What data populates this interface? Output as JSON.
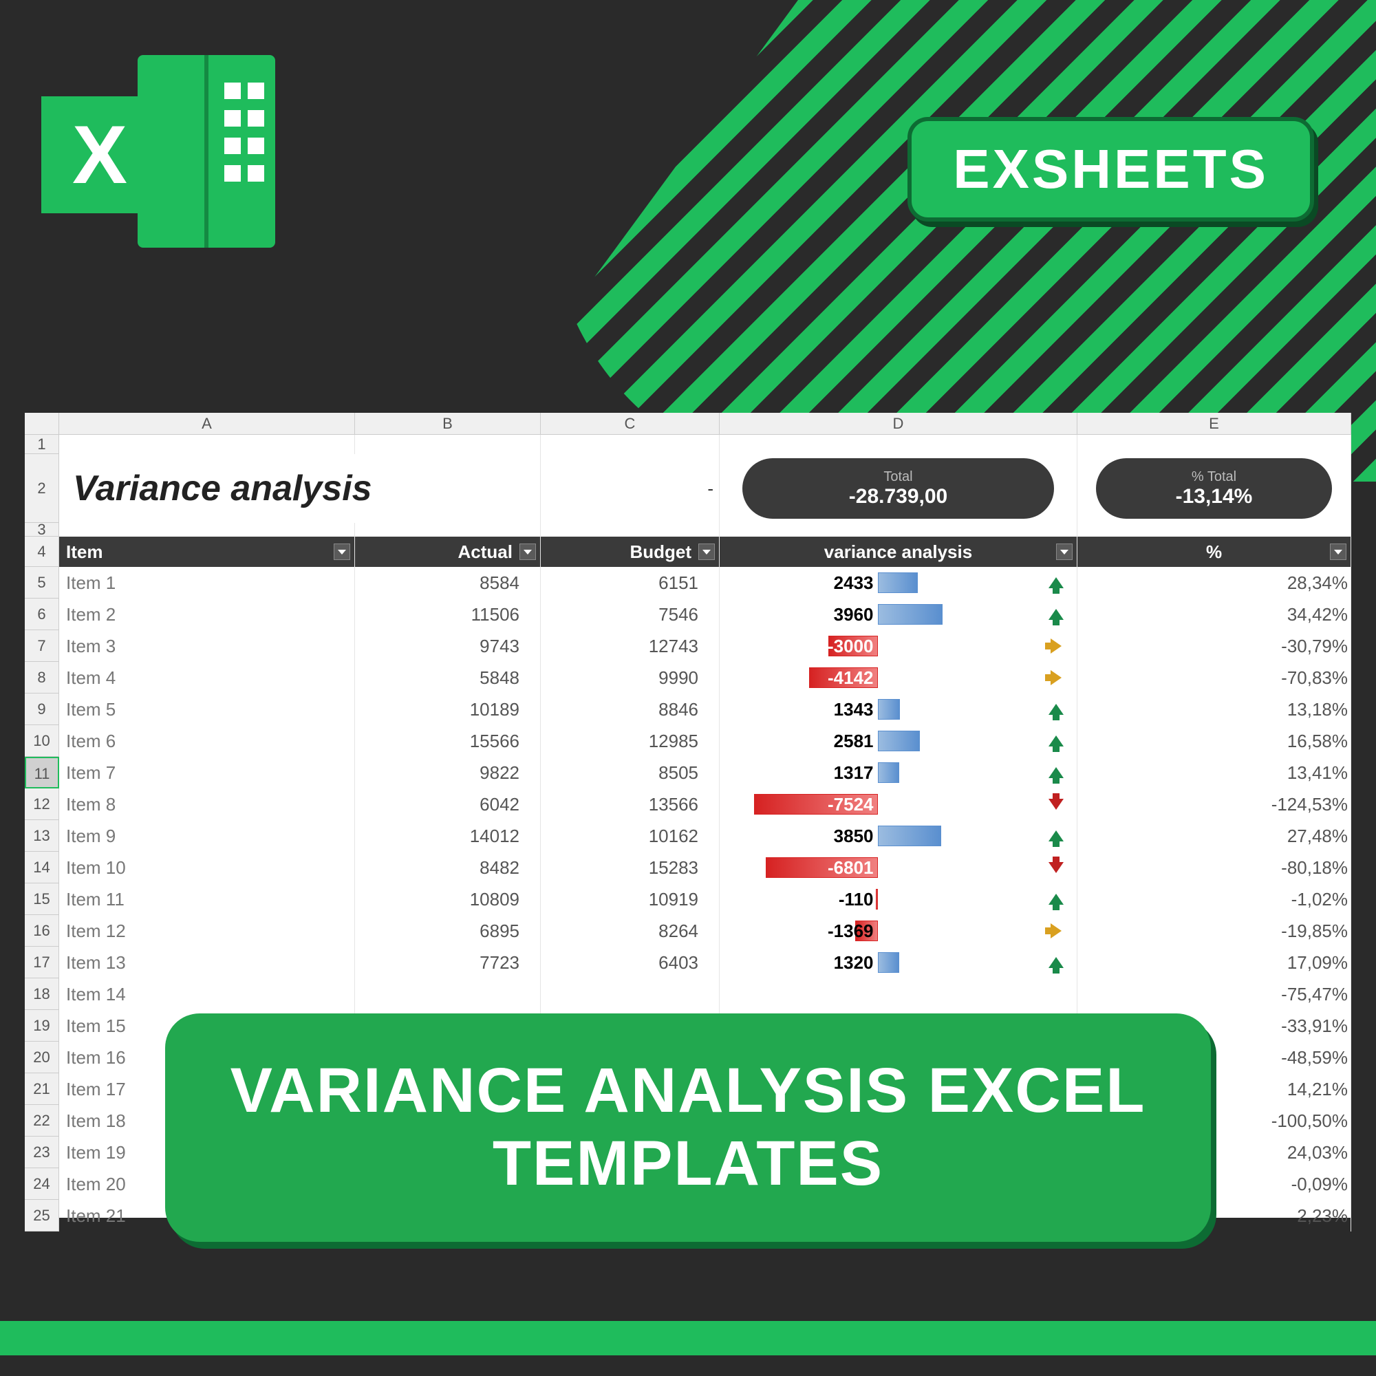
{
  "brand": "EXSHEETS",
  "excel_x": "X",
  "banner": "VARIANCE ANALYSIS EXCEL TEMPLATES",
  "colors": {
    "green": "#1fbc5c",
    "dark": "#2a2a2a",
    "pill": "#3a3a3a",
    "bar_pos": "#5a8fcf",
    "bar_neg": "#d62222",
    "arrow_up": "#1a8a4a",
    "arrow_side": "#d9a020",
    "arrow_down": "#c02020"
  },
  "columns": {
    "letters": [
      "A",
      "B",
      "C",
      "D",
      "E"
    ],
    "widths": [
      430,
      270,
      260,
      520,
      398
    ]
  },
  "sheet": {
    "title": "Variance analysis",
    "dash": "-",
    "kpi1_label": "Total",
    "kpi1_value": "-28.739,00",
    "kpi2_label": "% Total",
    "kpi2_value": "-13,14%",
    "headers": [
      "Item",
      "Actual",
      "Budget",
      "variance analysis",
      "%"
    ],
    "max_abs_variance": 7524,
    "rows": [
      {
        "n": 5,
        "item": "Item 1",
        "actual": "8584",
        "budget": "6151",
        "var": "2433",
        "varnum": 2433,
        "arrow": "up",
        "pct": "28,34%"
      },
      {
        "n": 6,
        "item": "Item 2",
        "actual": "11506",
        "budget": "7546",
        "var": "3960",
        "varnum": 3960,
        "arrow": "up",
        "pct": "34,42%"
      },
      {
        "n": 7,
        "item": "Item 3",
        "actual": "9743",
        "budget": "12743",
        "var": "-3000",
        "varnum": -3000,
        "arrow": "side",
        "pct": "-30,79%"
      },
      {
        "n": 8,
        "item": "Item 4",
        "actual": "5848",
        "budget": "9990",
        "var": "-4142",
        "varnum": -4142,
        "arrow": "side",
        "pct": "-70,83%"
      },
      {
        "n": 9,
        "item": "Item 5",
        "actual": "10189",
        "budget": "8846",
        "var": "1343",
        "varnum": 1343,
        "arrow": "up",
        "pct": "13,18%"
      },
      {
        "n": 10,
        "item": "Item 6",
        "actual": "15566",
        "budget": "12985",
        "var": "2581",
        "varnum": 2581,
        "arrow": "up",
        "pct": "16,58%"
      },
      {
        "n": 11,
        "item": "Item 7",
        "actual": "9822",
        "budget": "8505",
        "var": "1317",
        "varnum": 1317,
        "arrow": "up",
        "pct": "13,41%",
        "selected": true
      },
      {
        "n": 12,
        "item": "Item 8",
        "actual": "6042",
        "budget": "13566",
        "var": "-7524",
        "varnum": -7524,
        "arrow": "down",
        "pct": "-124,53%"
      },
      {
        "n": 13,
        "item": "Item 9",
        "actual": "14012",
        "budget": "10162",
        "var": "3850",
        "varnum": 3850,
        "arrow": "up",
        "pct": "27,48%"
      },
      {
        "n": 14,
        "item": "Item 10",
        "actual": "8482",
        "budget": "15283",
        "var": "-6801",
        "varnum": -6801,
        "arrow": "down",
        "pct": "-80,18%"
      },
      {
        "n": 15,
        "item": "Item 11",
        "actual": "10809",
        "budget": "10919",
        "var": "-110",
        "varnum": -110,
        "arrow": "up",
        "pct": "-1,02%"
      },
      {
        "n": 16,
        "item": "Item 12",
        "actual": "6895",
        "budget": "8264",
        "var": "-1369",
        "varnum": -1369,
        "arrow": "side",
        "pct": "-19,85%"
      },
      {
        "n": 17,
        "item": "Item 13",
        "actual": "7723",
        "budget": "6403",
        "var": "1320",
        "varnum": 1320,
        "arrow": "up",
        "pct": "17,09%"
      },
      {
        "n": 18,
        "item": "Item 14",
        "actual": "",
        "budget": "",
        "var": "",
        "varnum": null,
        "arrow": "",
        "pct": "-75,47%"
      },
      {
        "n": 19,
        "item": "Item 15",
        "actual": "",
        "budget": "",
        "var": "",
        "varnum": null,
        "arrow": "",
        "pct": "-33,91%"
      },
      {
        "n": 20,
        "item": "Item 16",
        "actual": "",
        "budget": "",
        "var": "",
        "varnum": null,
        "arrow": "",
        "pct": "-48,59%"
      },
      {
        "n": 21,
        "item": "Item 17",
        "actual": "",
        "budget": "",
        "var": "",
        "varnum": null,
        "arrow": "",
        "pct": "14,21%"
      },
      {
        "n": 22,
        "item": "Item 18",
        "actual": "",
        "budget": "",
        "var": "",
        "varnum": null,
        "arrow": "",
        "pct": "-100,50%"
      },
      {
        "n": 23,
        "item": "Item 19",
        "actual": "",
        "budget": "",
        "var": "",
        "varnum": null,
        "arrow": "",
        "pct": "24,03%"
      },
      {
        "n": 24,
        "item": "Item 20",
        "actual": "",
        "budget": "",
        "var": "",
        "varnum": null,
        "arrow": "",
        "pct": "-0,09%"
      },
      {
        "n": 25,
        "item": "Item 21",
        "actual": "",
        "budget": "",
        "var": "",
        "varnum": null,
        "arrow": "",
        "pct": "2,23%"
      }
    ]
  }
}
